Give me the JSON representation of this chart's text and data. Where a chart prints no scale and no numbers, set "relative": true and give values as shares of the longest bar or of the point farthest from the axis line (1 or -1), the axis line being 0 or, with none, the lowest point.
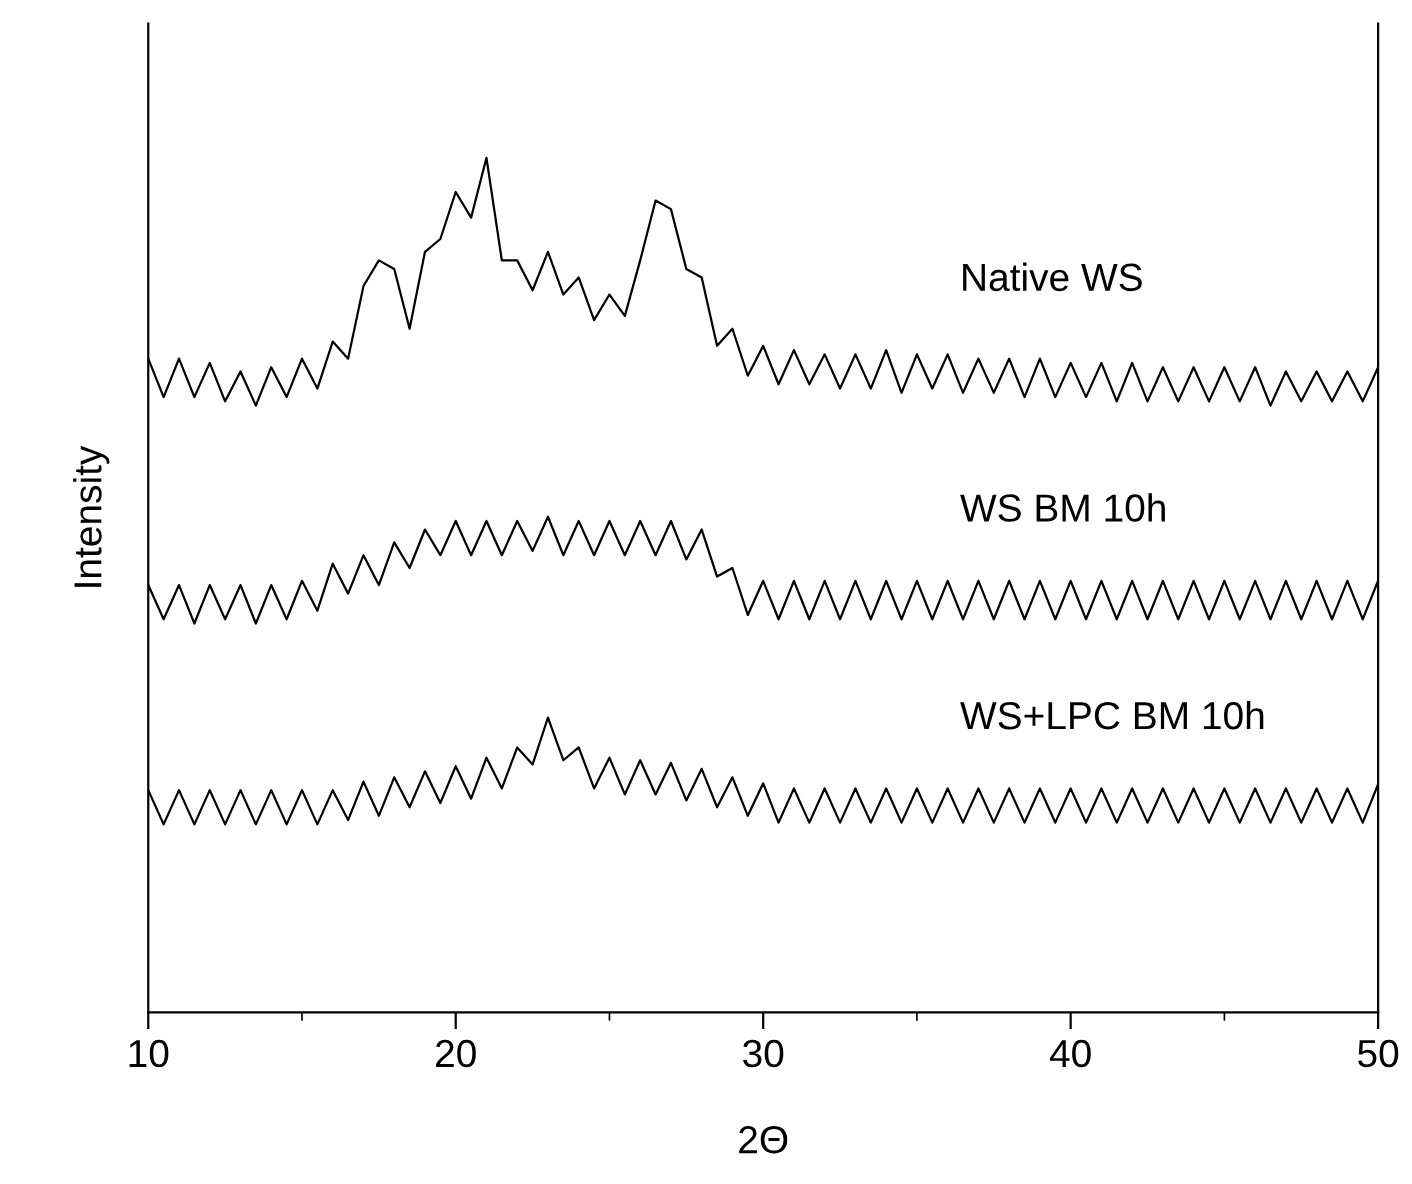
{
  "chart_data": {
    "type": "line",
    "relative": true,
    "xlabel": "2Θ",
    "ylabel": "Intensity",
    "xlim": [
      10,
      50
    ],
    "xticks": [
      10,
      20,
      30,
      40,
      50
    ],
    "grid": false,
    "legend": false,
    "marker": "none",
    "line_style": "solid",
    "tick_labels": "x",
    "x": [
      10,
      10.5,
      11,
      11.5,
      12,
      12.5,
      13,
      13.5,
      14,
      14.5,
      15,
      15.5,
      16,
      16.5,
      17,
      17.5,
      18,
      18.5,
      19,
      19.5,
      20,
      20.5,
      21,
      21.5,
      22,
      22.5,
      23,
      23.5,
      24,
      24.5,
      25,
      25.5,
      26,
      26.5,
      27,
      27.5,
      28,
      28.5,
      29,
      29.5,
      30,
      30.5,
      31,
      31.5,
      32,
      32.5,
      33,
      33.5,
      34,
      34.5,
      35,
      35.5,
      36,
      36.5,
      37,
      37.5,
      38,
      38.5,
      39,
      39.5,
      40,
      40.5,
      41,
      41.5,
      42,
      42.5,
      43,
      43.5,
      44,
      44.5,
      45,
      45.5,
      46,
      46.5,
      47,
      47.5,
      48,
      48.5,
      49,
      49.5,
      50
    ],
    "series": [
      {
        "name": "Native WS",
        "color": "#000000",
        "values": [
          0.765,
          0.72,
          0.765,
          0.72,
          0.76,
          0.715,
          0.75,
          0.71,
          0.755,
          0.72,
          0.765,
          0.73,
          0.785,
          0.765,
          0.85,
          0.88,
          0.87,
          0.8,
          0.89,
          0.905,
          0.96,
          0.93,
          1.0,
          0.88,
          0.88,
          0.845,
          0.89,
          0.84,
          0.86,
          0.81,
          0.84,
          0.815,
          0.88,
          0.95,
          0.94,
          0.87,
          0.86,
          0.78,
          0.8,
          0.745,
          0.78,
          0.735,
          0.775,
          0.735,
          0.77,
          0.73,
          0.77,
          0.73,
          0.775,
          0.725,
          0.77,
          0.73,
          0.77,
          0.725,
          0.765,
          0.725,
          0.765,
          0.72,
          0.765,
          0.72,
          0.76,
          0.72,
          0.76,
          0.715,
          0.76,
          0.715,
          0.755,
          0.715,
          0.755,
          0.715,
          0.755,
          0.715,
          0.755,
          0.71,
          0.75,
          0.715,
          0.75,
          0.715,
          0.75,
          0.715,
          0.755
        ]
      },
      {
        "name": "WS BM 10h",
        "color": "#000000",
        "values": [
          0.5,
          0.46,
          0.5,
          0.455,
          0.5,
          0.46,
          0.5,
          0.455,
          0.5,
          0.46,
          0.505,
          0.47,
          0.525,
          0.49,
          0.535,
          0.5,
          0.55,
          0.52,
          0.565,
          0.535,
          0.575,
          0.535,
          0.575,
          0.535,
          0.575,
          0.54,
          0.58,
          0.535,
          0.575,
          0.535,
          0.575,
          0.535,
          0.575,
          0.535,
          0.575,
          0.53,
          0.565,
          0.51,
          0.52,
          0.465,
          0.505,
          0.46,
          0.505,
          0.46,
          0.505,
          0.46,
          0.505,
          0.46,
          0.505,
          0.46,
          0.505,
          0.46,
          0.505,
          0.46,
          0.505,
          0.46,
          0.505,
          0.46,
          0.505,
          0.46,
          0.505,
          0.46,
          0.505,
          0.46,
          0.505,
          0.46,
          0.505,
          0.46,
          0.505,
          0.46,
          0.505,
          0.46,
          0.505,
          0.46,
          0.505,
          0.46,
          0.505,
          0.46,
          0.505,
          0.46,
          0.505
        ]
      },
      {
        "name": "WS+LPC BM 10h",
        "color": "#000000",
        "values": [
          0.26,
          0.22,
          0.26,
          0.22,
          0.26,
          0.22,
          0.26,
          0.22,
          0.26,
          0.22,
          0.26,
          0.22,
          0.26,
          0.225,
          0.27,
          0.23,
          0.275,
          0.24,
          0.282,
          0.245,
          0.288,
          0.25,
          0.298,
          0.262,
          0.31,
          0.29,
          0.345,
          0.295,
          0.31,
          0.262,
          0.298,
          0.255,
          0.295,
          0.255,
          0.292,
          0.248,
          0.285,
          0.24,
          0.275,
          0.23,
          0.268,
          0.222,
          0.262,
          0.222,
          0.262,
          0.222,
          0.262,
          0.222,
          0.262,
          0.222,
          0.262,
          0.222,
          0.262,
          0.222,
          0.262,
          0.222,
          0.262,
          0.222,
          0.262,
          0.222,
          0.262,
          0.222,
          0.262,
          0.222,
          0.262,
          0.222,
          0.262,
          0.222,
          0.262,
          0.222,
          0.262,
          0.222,
          0.262,
          0.222,
          0.262,
          0.222,
          0.262,
          0.222,
          0.262,
          0.222,
          0.267
        ]
      }
    ]
  }
}
